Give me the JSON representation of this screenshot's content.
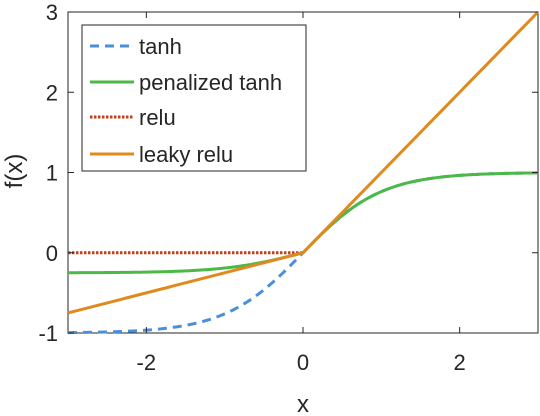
{
  "chart_data": {
    "type": "line",
    "xlabel": "x",
    "ylabel": "f(x)",
    "xlim": [
      -3,
      3
    ],
    "ylim": [
      -1,
      3
    ],
    "xticks": [
      -2,
      0,
      2
    ],
    "xtick_labels": [
      "-2",
      "0",
      "2"
    ],
    "yticks": [
      -1,
      0,
      1,
      2,
      3
    ],
    "ytick_labels": [
      "-1",
      "0",
      "1",
      "2",
      "3"
    ],
    "grid": false,
    "legend_position": "top-left",
    "series": [
      {
        "name": "tanh",
        "function": "tanh",
        "color": "#4a90d9",
        "style": "dashed"
      },
      {
        "name": "penalized tanh",
        "function": "penalized_tanh",
        "alpha": 0.25,
        "color": "#4cb848",
        "style": "solid"
      },
      {
        "name": "relu",
        "function": "relu",
        "color": "#c83c1e",
        "style": "dotted"
      },
      {
        "name": "leaky relu",
        "function": "leaky_relu",
        "alpha": 0.25,
        "color": "#e08a1e",
        "style": "solid"
      }
    ]
  }
}
